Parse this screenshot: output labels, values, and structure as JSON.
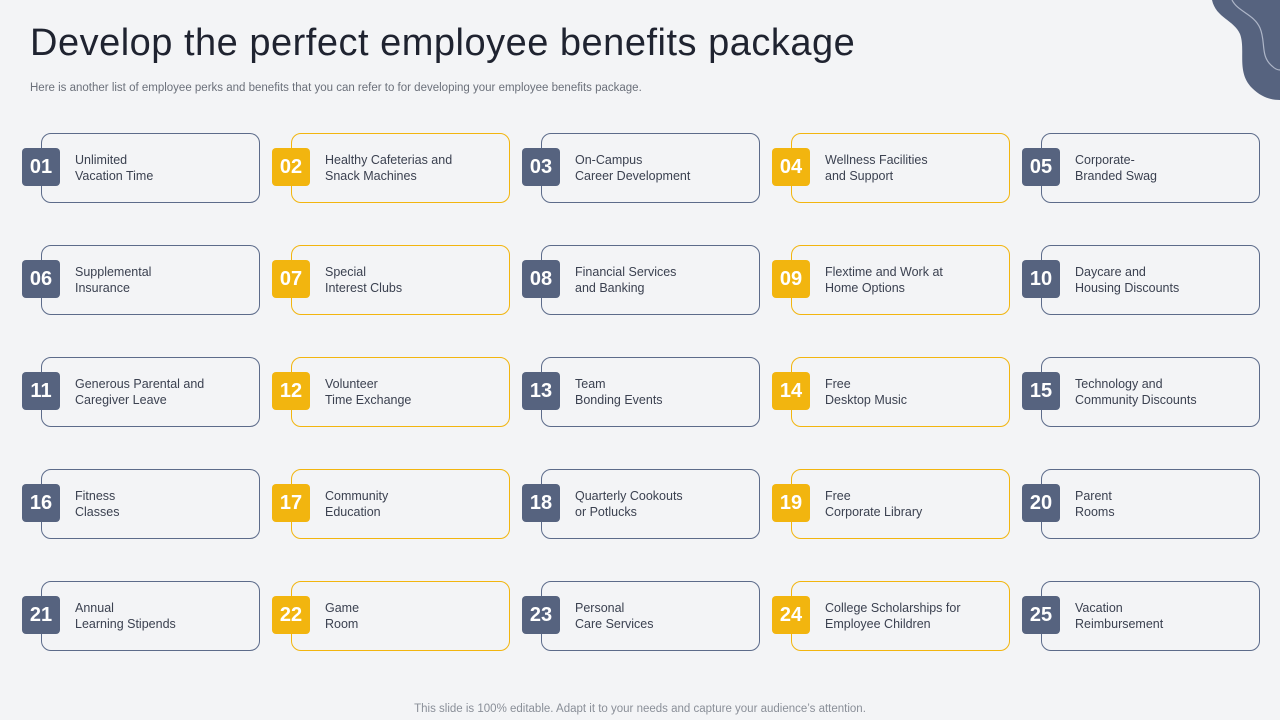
{
  "title": "Develop the perfect employee benefits package",
  "subtitle": "Here is another list of employee perks and benefits that you can refer to for developing your employee benefits package.",
  "footer": "This slide is 100% editable. Adapt it to your needs and capture your audience’s attention.",
  "colors": {
    "blue": "#56637f",
    "yellow": "#f2b50f",
    "background": "#f3f4f6"
  },
  "items": [
    {
      "num": "01",
      "label": "Unlimited\nVacation Time",
      "color": "blue"
    },
    {
      "num": "02",
      "label": "Healthy Cafeterias and\nSnack Machines",
      "color": "yellow"
    },
    {
      "num": "03",
      "label": "On-Campus\nCareer Development",
      "color": "blue"
    },
    {
      "num": "04",
      "label": "Wellness Facilities\nand Support",
      "color": "yellow"
    },
    {
      "num": "05",
      "label": "Corporate-\nBranded Swag",
      "color": "blue"
    },
    {
      "num": "06",
      "label": "Supplemental\nInsurance",
      "color": "blue"
    },
    {
      "num": "07",
      "label": "Special\nInterest Clubs",
      "color": "yellow"
    },
    {
      "num": "08",
      "label": "Financial Services\nand Banking",
      "color": "blue"
    },
    {
      "num": "09",
      "label": "Flextime and Work at\nHome Options",
      "color": "yellow"
    },
    {
      "num": "10",
      "label": "Daycare and\nHousing Discounts",
      "color": "blue"
    },
    {
      "num": "11",
      "label": "Generous Parental and\nCaregiver Leave",
      "color": "blue"
    },
    {
      "num": "12",
      "label": "Volunteer\nTime Exchange",
      "color": "yellow"
    },
    {
      "num": "13",
      "label": "Team\nBonding Events",
      "color": "blue"
    },
    {
      "num": "14",
      "label": "Free\nDesktop Music",
      "color": "yellow"
    },
    {
      "num": "15",
      "label": "Technology and\nCommunity Discounts",
      "color": "blue"
    },
    {
      "num": "16",
      "label": "Fitness\nClasses",
      "color": "blue"
    },
    {
      "num": "17",
      "label": "Community\nEducation",
      "color": "yellow"
    },
    {
      "num": "18",
      "label": "Quarterly Cookouts\nor Potlucks",
      "color": "blue"
    },
    {
      "num": "19",
      "label": "Free\nCorporate Library",
      "color": "yellow"
    },
    {
      "num": "20",
      "label": "Parent\nRooms",
      "color": "blue"
    },
    {
      "num": "21",
      "label": "Annual\nLearning Stipends",
      "color": "blue"
    },
    {
      "num": "22",
      "label": "Game\nRoom",
      "color": "yellow"
    },
    {
      "num": "23",
      "label": "Personal\nCare Services",
      "color": "blue"
    },
    {
      "num": "24",
      "label": "College Scholarships for\nEmployee Children",
      "color": "yellow"
    },
    {
      "num": "25",
      "label": "Vacation\nReimbursement",
      "color": "blue"
    }
  ]
}
